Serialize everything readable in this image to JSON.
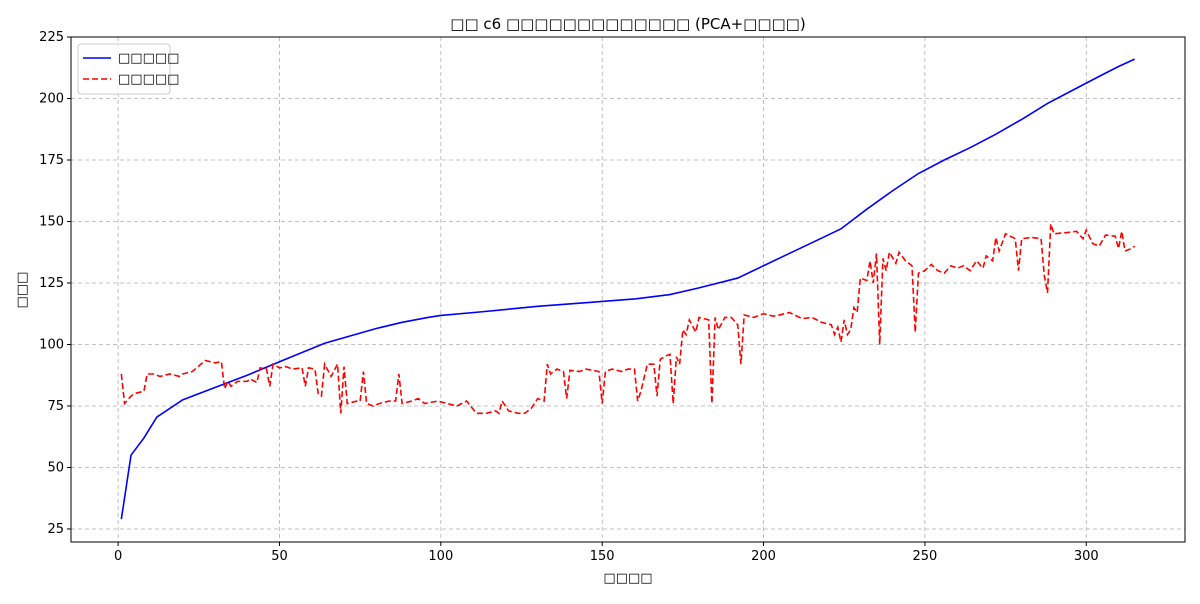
{
  "chart_data": {
    "type": "line",
    "title": "□□ c6 □□□□□□□□□□□□□ (PCA+□□□□)",
    "x_label": "□□□□",
    "y_label": "□□□",
    "xlim": [
      -14.6,
      330.6
    ],
    "ylim": [
      19.7,
      225
    ],
    "xticks": [
      0,
      50,
      100,
      150,
      200,
      250,
      300
    ],
    "yticks": [
      25,
      50,
      75,
      100,
      125,
      150,
      175,
      200,
      225
    ],
    "grid": true,
    "legend": "upper left",
    "series": [
      {
        "name": "□□□□□",
        "color": "#0000ff",
        "dash": "solid",
        "x": [
          1,
          4,
          8,
          12,
          20,
          30,
          40,
          50,
          64,
          72,
          80,
          88,
          96,
          100,
          112,
          130,
          145,
          160,
          171,
          180,
          192,
          200,
          208,
          216,
          224,
          232,
          240,
          248,
          256,
          264,
          272,
          280,
          288,
          296,
          304,
          310,
          315
        ],
        "values": [
          29,
          55,
          62,
          70.5,
          77.5,
          82.5,
          87.5,
          93,
          100.5,
          103.5,
          106.5,
          109,
          111,
          111.8,
          113.2,
          115.5,
          117,
          118.5,
          120.3,
          123,
          127,
          132,
          137,
          142,
          147,
          155,
          162.5,
          169.5,
          175,
          180,
          185.5,
          191.5,
          198,
          203.5,
          209,
          213,
          216
        ]
      },
      {
        "name": "□□□□□",
        "color": "#ff0000",
        "dash": "dashed",
        "x": [
          1,
          2,
          4,
          5,
          8,
          9,
          11,
          13,
          16,
          19,
          20,
          23,
          27,
          30,
          32,
          33,
          34,
          35,
          37,
          40,
          41,
          43,
          44,
          46,
          47,
          48,
          50,
          52,
          54,
          57,
          58,
          59,
          61,
          62,
          63,
          64,
          66,
          68,
          69,
          70,
          71,
          74,
          75,
          76,
          77,
          79,
          81,
          84,
          86,
          87,
          88,
          91,
          93,
          95,
          99,
          102,
          105,
          108,
          111,
          114,
          117,
          118,
          119,
          121,
          124,
          126,
          128,
          130,
          132,
          133,
          134,
          136,
          138,
          139,
          140,
          143,
          145,
          149,
          150,
          151,
          153,
          156,
          158,
          160,
          161,
          162,
          164,
          166,
          167,
          168,
          170,
          171,
          172,
          173,
          174,
          175,
          176,
          177,
          179,
          180,
          183,
          184,
          185,
          186,
          188,
          190,
          192,
          193,
          194,
          197,
          200,
          203,
          205,
          208,
          212,
          215,
          218,
          221,
          222,
          223,
          224,
          225,
          226,
          227,
          228,
          229,
          230,
          232,
          233,
          234,
          235,
          236,
          237,
          238,
          239,
          241,
          242,
          244,
          246,
          247,
          248,
          250,
          252,
          254,
          256,
          258,
          260,
          262,
          264,
          266,
          268,
          269,
          271,
          272,
          273,
          275,
          278,
          279,
          280,
          283,
          286,
          287,
          288,
          289,
          290,
          294,
          297,
          299,
          300,
          302,
          304,
          306,
          309,
          310,
          311,
          312,
          314,
          315
        ],
        "values": [
          88,
          76,
          79,
          80,
          81,
          88,
          88,
          87,
          88,
          87,
          88,
          89,
          93.5,
          92.5,
          93,
          82,
          85,
          83,
          85,
          85,
          86,
          84.5,
          90.5,
          90,
          83,
          92,
          90.5,
          91,
          90,
          90.5,
          83,
          90.5,
          90,
          80,
          79,
          92,
          87,
          92,
          72,
          91,
          76,
          77,
          77,
          89,
          76,
          75,
          76,
          77,
          77,
          88,
          76,
          77,
          78,
          76,
          77,
          76,
          75,
          77,
          72,
          72,
          73,
          72,
          77,
          73,
          72,
          72,
          74,
          78,
          77,
          92,
          88,
          90,
          89,
          78,
          89.5,
          89,
          90,
          89,
          76,
          89,
          90,
          89,
          90,
          90,
          77,
          81,
          92,
          92,
          79,
          94,
          95.5,
          96,
          76,
          95,
          92,
          106,
          104,
          110,
          105,
          111,
          110,
          76,
          111,
          106,
          111,
          111,
          108,
          92,
          112,
          111,
          112.5,
          111.5,
          112,
          113,
          110.5,
          111,
          109,
          108,
          104,
          107,
          101,
          110,
          104,
          106,
          115,
          113,
          127,
          126,
          134,
          125,
          137,
          100,
          135,
          130,
          137.5,
          133,
          137.5,
          134,
          132,
          105,
          129,
          130,
          132.5,
          130,
          129,
          132,
          131,
          132,
          130,
          134,
          131,
          136,
          134,
          143.5,
          138,
          145,
          143,
          130,
          143,
          143.5,
          143,
          128,
          121,
          149,
          145,
          145.5,
          146,
          143,
          146.5,
          141,
          140,
          144.5,
          144,
          139,
          146,
          138,
          139,
          140
        ]
      }
    ]
  }
}
